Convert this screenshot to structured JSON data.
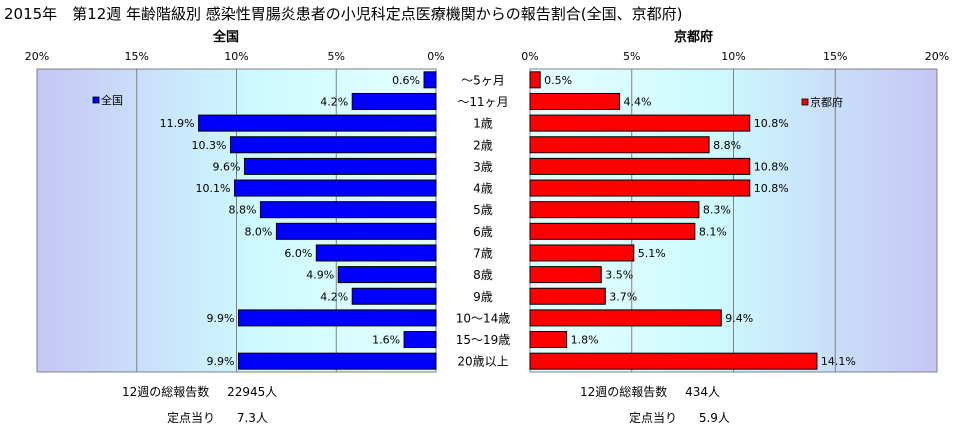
{
  "title": "2015年　第12週 年齢階級別 感染性胃腸炎患者の小児科定点医療機関からの報告割合(全国、京都府)",
  "chart_data": [
    {
      "type": "bar",
      "orientation": "horizontal",
      "direction": "right-to-left",
      "panel_title": "全国",
      "categories": [
        "～5ヶ月",
        "～11ヶ月",
        "1歳",
        "2歳",
        "3歳",
        "4歳",
        "5歳",
        "6歳",
        "7歳",
        "8歳",
        "9歳",
        "10～14歳",
        "15～19歳",
        "20歳以上"
      ],
      "series": [
        {
          "name": "全国",
          "values": [
            0.6,
            4.2,
            11.9,
            10.3,
            9.6,
            10.1,
            8.8,
            8.0,
            6.0,
            4.9,
            4.2,
            9.9,
            1.6,
            9.9
          ],
          "color": "#0000ff"
        }
      ],
      "value_labels": [
        "0.6%",
        "4.2%",
        "11.9%",
        "10.3%",
        "9.6%",
        "10.1%",
        "8.8%",
        "8.0%",
        "6.0%",
        "4.9%",
        "4.2%",
        "9.9%",
        "1.6%",
        "9.9%"
      ],
      "xlim": [
        0,
        20
      ],
      "ticks": [
        "20%",
        "15%",
        "10%",
        "5%",
        "0%"
      ],
      "legend_position": "top-left",
      "grid": true
    },
    {
      "type": "bar",
      "orientation": "horizontal",
      "direction": "left-to-right",
      "panel_title": "京都府",
      "categories": [
        "～5ヶ月",
        "～11ヶ月",
        "1歳",
        "2歳",
        "3歳",
        "4歳",
        "5歳",
        "6歳",
        "7歳",
        "8歳",
        "9歳",
        "10～14歳",
        "15～19歳",
        "20歳以上"
      ],
      "series": [
        {
          "name": "京都府",
          "values": [
            0.5,
            4.4,
            10.8,
            8.8,
            10.8,
            10.8,
            8.3,
            8.1,
            5.1,
            3.5,
            3.7,
            9.4,
            1.8,
            14.1
          ],
          "color": "#ff0000"
        }
      ],
      "value_labels": [
        "0.5%",
        "4.4%",
        "10.8%",
        "8.8%",
        "10.8%",
        "10.8%",
        "8.3%",
        "8.1%",
        "5.1%",
        "3.5%",
        "3.7%",
        "9.4%",
        "1.8%",
        "14.1%"
      ],
      "xlim": [
        0,
        20
      ],
      "ticks": [
        "0%",
        "5%",
        "10%",
        "15%",
        "20%"
      ],
      "legend_position": "top-right",
      "grid": true
    }
  ],
  "footer": {
    "national": {
      "total_label": "12週の総報告数",
      "total_value": "22945人",
      "per_label": "定点当り",
      "per_value": "7.3人"
    },
    "kyoto": {
      "total_label": "12週の総報告数",
      "total_value": "434人",
      "per_label": "定点当り",
      "per_value": "5.9人"
    }
  },
  "colors": {
    "national_bar": "#0000ff",
    "kyoto_bar": "#ff0000",
    "plot_bg_center": "#cbfaff",
    "plot_bg_edge": "#c8c8f5"
  }
}
